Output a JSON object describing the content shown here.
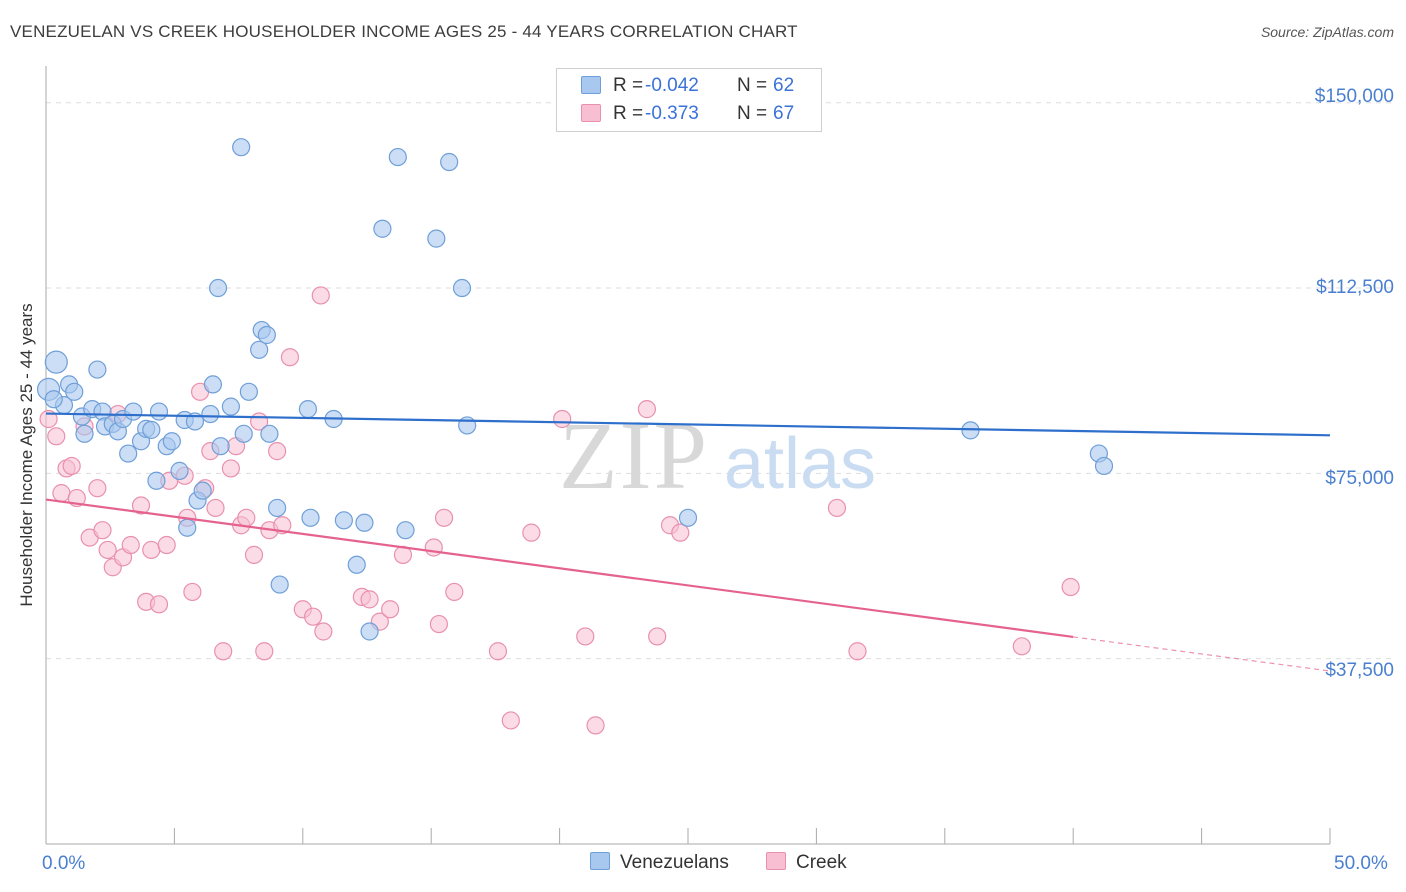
{
  "title": "VENEZUELAN VS CREEK HOUSEHOLDER INCOME AGES 25 - 44 YEARS CORRELATION CHART",
  "source": "Source: ZipAtlas.com",
  "watermark": {
    "zip": "ZIP",
    "atlas": "atlas"
  },
  "legend": {
    "r_label": "R =",
    "n_label": "N =",
    "rows": [
      {
        "series": "Venezuelans",
        "r": "-0.042",
        "n": "62"
      },
      {
        "series": "Creek",
        "r": "-0.373",
        "n": "67"
      }
    ]
  },
  "bottom_legend": [
    "Venezuelans",
    "Creek"
  ],
  "colors": {
    "venezuelans_fill": "#a8c8ef",
    "venezuelans_stroke": "#6f9fd8",
    "venezuelans_line": "#2e6fcc",
    "creek_fill": "#f7bfd1",
    "creek_stroke": "#e990ae",
    "creek_line": "#e5628f",
    "axis_text": "#4a7fd0",
    "grid": "#dddddd"
  },
  "chart_data": {
    "type": "scatter",
    "title": "VENEZUELAN VS CREEK HOUSEHOLDER INCOME AGES 25 - 44 YEARS CORRELATION CHART",
    "xlabel": "",
    "ylabel": "Householder Income Ages 25 - 44 years",
    "xlim": [
      0,
      50
    ],
    "ylim": [
      0,
      155000
    ],
    "x_tick_labels": [
      "0.0%",
      "50.0%"
    ],
    "y_ticks": [
      37500,
      75000,
      112500,
      150000
    ],
    "y_tick_labels": [
      "$37,500",
      "$75,000",
      "$112,500",
      "$150,000"
    ],
    "grid": true,
    "series": [
      {
        "name": "Venezuelans",
        "r": -0.042,
        "n": 62,
        "trend": {
          "x": [
            0,
            50
          ],
          "y": [
            87100,
            82700
          ]
        },
        "points": [
          [
            0.1,
            92000
          ],
          [
            0.4,
            97500
          ],
          [
            0.7,
            88800
          ],
          [
            0.9,
            93000
          ],
          [
            1.1,
            91500
          ],
          [
            1.4,
            86500
          ],
          [
            1.5,
            83000
          ],
          [
            1.8,
            88000
          ],
          [
            2.0,
            96000
          ],
          [
            2.2,
            87500
          ],
          [
            2.3,
            84500
          ],
          [
            2.6,
            85000
          ],
          [
            2.8,
            83500
          ],
          [
            3.0,
            86000
          ],
          [
            3.2,
            79000
          ],
          [
            3.4,
            87500
          ],
          [
            3.7,
            81500
          ],
          [
            3.9,
            84000
          ],
          [
            4.1,
            83800
          ],
          [
            4.3,
            73500
          ],
          [
            4.4,
            87500
          ],
          [
            4.7,
            80500
          ],
          [
            4.9,
            81500
          ],
          [
            5.2,
            75500
          ],
          [
            5.4,
            85800
          ],
          [
            5.5,
            64000
          ],
          [
            5.8,
            85500
          ],
          [
            5.9,
            69500
          ],
          [
            6.1,
            71500
          ],
          [
            6.4,
            87000
          ],
          [
            6.5,
            93000
          ],
          [
            6.7,
            112500
          ],
          [
            6.8,
            80500
          ],
          [
            7.2,
            88500
          ],
          [
            7.6,
            141000
          ],
          [
            7.7,
            83000
          ],
          [
            7.9,
            91500
          ],
          [
            8.3,
            100000
          ],
          [
            8.4,
            104000
          ],
          [
            8.6,
            103000
          ],
          [
            8.7,
            83000
          ],
          [
            9.0,
            68000
          ],
          [
            9.1,
            52500
          ],
          [
            10.2,
            88000
          ],
          [
            10.3,
            66000
          ],
          [
            11.2,
            86000
          ],
          [
            11.6,
            65500
          ],
          [
            12.1,
            56500
          ],
          [
            12.4,
            65000
          ],
          [
            12.6,
            43000
          ],
          [
            13.1,
            124500
          ],
          [
            13.7,
            139000
          ],
          [
            14.0,
            63500
          ],
          [
            15.2,
            122500
          ],
          [
            15.7,
            138000
          ],
          [
            16.2,
            112500
          ],
          [
            16.4,
            84700
          ],
          [
            25.0,
            66000
          ],
          [
            36.0,
            83700
          ],
          [
            41.0,
            79000
          ],
          [
            41.2,
            76500
          ],
          [
            0.3,
            90000
          ]
        ]
      },
      {
        "name": "Creek",
        "r": -0.373,
        "n": 67,
        "trend": {
          "x": [
            0,
            40
          ],
          "y": [
            69700,
            41900
          ]
        },
        "trend_dashed": {
          "x": [
            40,
            50
          ],
          "y": [
            41900,
            35000
          ]
        },
        "points": [
          [
            0.1,
            86000
          ],
          [
            0.4,
            82500
          ],
          [
            0.6,
            71000
          ],
          [
            0.8,
            76000
          ],
          [
            1.0,
            76500
          ],
          [
            1.2,
            70000
          ],
          [
            1.5,
            84500
          ],
          [
            1.7,
            62000
          ],
          [
            2.0,
            72000
          ],
          [
            2.2,
            63500
          ],
          [
            2.4,
            59500
          ],
          [
            2.6,
            56000
          ],
          [
            2.8,
            87000
          ],
          [
            3.0,
            58000
          ],
          [
            3.3,
            60500
          ],
          [
            3.7,
            68500
          ],
          [
            3.9,
            49000
          ],
          [
            4.1,
            59500
          ],
          [
            4.4,
            48500
          ],
          [
            4.7,
            60500
          ],
          [
            4.8,
            73500
          ],
          [
            5.4,
            74500
          ],
          [
            5.5,
            66000
          ],
          [
            5.7,
            51000
          ],
          [
            6.0,
            91500
          ],
          [
            6.2,
            72000
          ],
          [
            6.4,
            79500
          ],
          [
            6.6,
            68000
          ],
          [
            6.9,
            39000
          ],
          [
            7.2,
            76000
          ],
          [
            7.4,
            80500
          ],
          [
            7.6,
            64500
          ],
          [
            7.8,
            66000
          ],
          [
            8.1,
            58500
          ],
          [
            8.3,
            85500
          ],
          [
            8.5,
            39000
          ],
          [
            8.7,
            63500
          ],
          [
            9.0,
            79500
          ],
          [
            9.2,
            64500
          ],
          [
            9.5,
            98500
          ],
          [
            10.0,
            47500
          ],
          [
            10.4,
            46000
          ],
          [
            10.7,
            111000
          ],
          [
            10.8,
            43000
          ],
          [
            12.3,
            50000
          ],
          [
            12.6,
            49500
          ],
          [
            13.0,
            45000
          ],
          [
            13.4,
            47500
          ],
          [
            13.9,
            58500
          ],
          [
            15.1,
            60000
          ],
          [
            15.3,
            44500
          ],
          [
            15.5,
            66000
          ],
          [
            15.9,
            51000
          ],
          [
            17.6,
            39000
          ],
          [
            18.1,
            25000
          ],
          [
            18.9,
            63000
          ],
          [
            20.1,
            86000
          ],
          [
            21.0,
            42000
          ],
          [
            21.4,
            24000
          ],
          [
            23.4,
            88000
          ],
          [
            23.8,
            42000
          ],
          [
            24.3,
            64500
          ],
          [
            24.7,
            63000
          ],
          [
            30.8,
            68000
          ],
          [
            31.6,
            39000
          ],
          [
            38.0,
            40000
          ],
          [
            39.9,
            52000
          ]
        ]
      }
    ]
  }
}
